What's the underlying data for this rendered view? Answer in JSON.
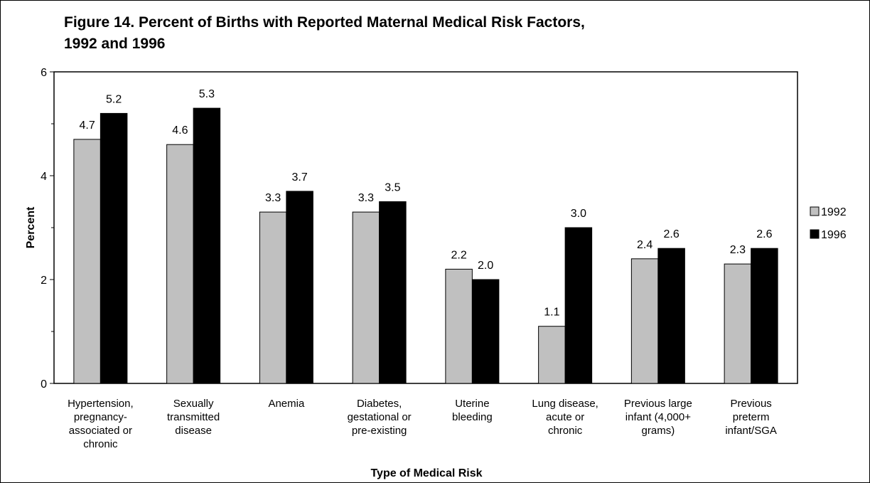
{
  "chart_data": {
    "type": "bar",
    "title": "Figure 14.  Percent of Births with Reported Maternal Medical Risk Factors,\n1992 and 1996",
    "x_label": "Type of Medical Risk",
    "y_label": "Percent",
    "categories": [
      "Hypertension,\npregnancy-\nassociated or\nchronic",
      "Sexually\ntransmitted\ndisease",
      "Anemia",
      "Diabetes,\ngestational or\npre-existing",
      "Uterine\nbleeding",
      "Lung disease,\nacute or\nchronic",
      "Previous large\ninfant (4,000+\ngrams)",
      "Previous\npreterm\ninfant/SGA"
    ],
    "series": [
      {
        "name": "1992",
        "color": "#c0c0c0",
        "values": [
          4.7,
          4.6,
          3.3,
          3.3,
          2.2,
          1.1,
          2.4,
          2.3
        ],
        "value_labels": [
          "4.7",
          "4.6",
          "3.3",
          "3.3",
          "2.2",
          "1.1",
          "2.4",
          "2.3"
        ]
      },
      {
        "name": "1996",
        "color": "#000000",
        "values": [
          5.2,
          5.3,
          3.7,
          3.5,
          2.0,
          3.0,
          2.6,
          2.6
        ],
        "value_labels": [
          "5.2",
          "5.3",
          "3.7",
          "3.5",
          "2.0",
          "3.0",
          "2.6",
          "2.6"
        ]
      }
    ],
    "ylim": [
      0,
      6
    ],
    "yticks": [
      0,
      2,
      4,
      6
    ],
    "yticks_minor": [
      1,
      3,
      5
    ],
    "grid": false,
    "legend": "right"
  }
}
